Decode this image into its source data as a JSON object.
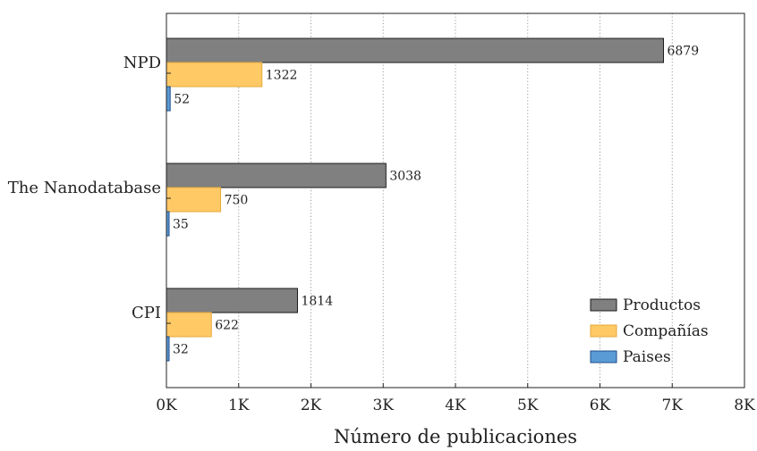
{
  "chart_data": {
    "type": "bar",
    "orientation": "horizontal",
    "categories": [
      "NPD",
      "The Nanodatabase",
      "CPI"
    ],
    "series": [
      {
        "name": "Productos",
        "values": [
          6879,
          3038,
          1814
        ],
        "color": "#808080",
        "stroke": "#1a1a1a"
      },
      {
        "name": "Compañías",
        "values": [
          1322,
          750,
          622
        ],
        "color": "#ffc966",
        "stroke": "#e6a93a"
      },
      {
        "name": "Paises",
        "values": [
          52,
          35,
          32
        ],
        "color": "#5b9bd5",
        "stroke": "#1f4e8a"
      }
    ],
    "xlabel": "Número de publicaciones",
    "ylabel": "",
    "xlim": [
      0,
      8000
    ],
    "xticks": [
      0,
      1000,
      2000,
      3000,
      4000,
      5000,
      6000,
      7000,
      8000
    ],
    "xtick_labels": [
      "0K",
      "1K",
      "2K",
      "3K",
      "4K",
      "5K",
      "6K",
      "7K",
      "8K"
    ],
    "grid": "vertical dotted",
    "legend_position": "bottom-right"
  }
}
